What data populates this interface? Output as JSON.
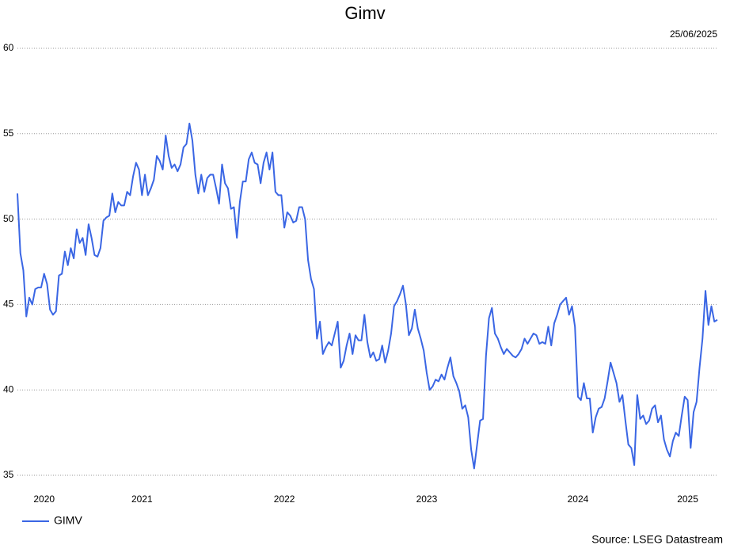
{
  "chart_data": {
    "type": "line",
    "title": "Gimv",
    "date": "25/06/2025",
    "source": "Source: LSEG Datastream",
    "categories": [
      null,
      null,
      null,
      null,
      null,
      null,
      null,
      null,
      null,
      "2020",
      null,
      null,
      null,
      null,
      null,
      null,
      null,
      null,
      null,
      null,
      null,
      null,
      null,
      null,
      null,
      null,
      null,
      null,
      null,
      null,
      null,
      null,
      null,
      null,
      null,
      null,
      null,
      null,
      null,
      null,
      null,
      null,
      "2021",
      null,
      null,
      null,
      null,
      null,
      null,
      null,
      null,
      null,
      null,
      null,
      null,
      null,
      null,
      null,
      null,
      null,
      null,
      null,
      null,
      null,
      null,
      null,
      null,
      null,
      null,
      null,
      null,
      null,
      null,
      null,
      null,
      null,
      null,
      null,
      null,
      null,
      null,
      null,
      null,
      null,
      null,
      null,
      null,
      null,
      null,
      null,
      "2022",
      null,
      null,
      null,
      null,
      null,
      null,
      null,
      null,
      null,
      null,
      null,
      null,
      null,
      null,
      null,
      null,
      null,
      null,
      null,
      null,
      null,
      null,
      null,
      null,
      null,
      null,
      null,
      null,
      null,
      null,
      null,
      null,
      null,
      null,
      null,
      null,
      null,
      null,
      null,
      null,
      null,
      null,
      null,
      null,
      null,
      null,
      null,
      "2023",
      null,
      null,
      null,
      null,
      null,
      null,
      null,
      null,
      null,
      null,
      null,
      null,
      null,
      null,
      null,
      null,
      null,
      null,
      null,
      null,
      null,
      null,
      null,
      null,
      null,
      null,
      null,
      null,
      null,
      null,
      null,
      null,
      null,
      null,
      null,
      null,
      null,
      null,
      null,
      null,
      null,
      null,
      null,
      null,
      null,
      null,
      null,
      null,
      null,
      null,
      "2024",
      null,
      null,
      null,
      null,
      null,
      null,
      null,
      null,
      null,
      null,
      null,
      null,
      null,
      null,
      null,
      null,
      null,
      null,
      null,
      null,
      null,
      null,
      null,
      null,
      null,
      null,
      null,
      null,
      null,
      null,
      null,
      null,
      null,
      null,
      null,
      null,
      "2025",
      null,
      null,
      null,
      null,
      null,
      null,
      null,
      null,
      null,
      null
    ],
    "series": [
      {
        "name": "GIMV",
        "color": "#3a66e4",
        "values": [
          51.5,
          48,
          47,
          44.3,
          45.4,
          45,
          45.9,
          46,
          46,
          46.8,
          46.2,
          44.7,
          44.4,
          44.6,
          46.7,
          46.8,
          48.1,
          47.3,
          48.3,
          47.7,
          49.4,
          48.6,
          48.9,
          47.9,
          49.7,
          48.9,
          47.9,
          47.8,
          48.3,
          49.9,
          50.1,
          50.2,
          51.5,
          50.4,
          51,
          50.8,
          50.8,
          51.6,
          51.4,
          52.5,
          53.3,
          52.9,
          51.4,
          52.6,
          51.4,
          51.8,
          52.3,
          53.7,
          53.4,
          52.9,
          54.9,
          53.7,
          53,
          53.2,
          52.8,
          53.2,
          54.2,
          54.4,
          55.6,
          54.6,
          52.6,
          51.5,
          52.6,
          51.6,
          52.4,
          52.6,
          52.6,
          51.8,
          50.9,
          53.2,
          52.1,
          51.8,
          50.6,
          50.7,
          48.9,
          51,
          52.2,
          52.2,
          53.5,
          53.9,
          53.3,
          53.2,
          52.1,
          53.3,
          53.9,
          52.9,
          53.9,
          51.6,
          51.4,
          51.4,
          49.5,
          50.4,
          50.2,
          49.8,
          49.9,
          50.7,
          50.7,
          50,
          47.6,
          46.5,
          45.9,
          43,
          44,
          42.1,
          42.5,
          42.8,
          42.6,
          43.3,
          44,
          41.3,
          41.7,
          42.6,
          43.3,
          42.1,
          43.2,
          42.9,
          42.9,
          44.4,
          42.8,
          41.9,
          42.2,
          41.7,
          41.8,
          42.6,
          41.6,
          42.3,
          43.3,
          44.9,
          45.2,
          45.6,
          46.1,
          45,
          43.2,
          43.6,
          44.7,
          43.6,
          43,
          42.3,
          41,
          40,
          40.2,
          40.6,
          40.5,
          40.9,
          40.6,
          41.3,
          41.9,
          40.8,
          40.4,
          39.9,
          38.9,
          39.1,
          38.4,
          36.5,
          35.4,
          36.8,
          38.2,
          38.3,
          42,
          44.2,
          44.8,
          43.3,
          43,
          42.5,
          42.1,
          42.4,
          42.2,
          42,
          41.9,
          42.1,
          42.4,
          43,
          42.7,
          43,
          43.3,
          43.2,
          42.7,
          42.8,
          42.7,
          43.7,
          42.6,
          43.9,
          44.4,
          45,
          45.2,
          45.4,
          44.4,
          44.9,
          43.7,
          39.6,
          39.4,
          40.4,
          39.5,
          39.5,
          37.5,
          38.4,
          38.9,
          39,
          39.5,
          40.5,
          41.6,
          41,
          40.4,
          39.3,
          39.7,
          38.2,
          36.8,
          36.6,
          35.6,
          39.7,
          38.3,
          38.5,
          38,
          38.2,
          38.9,
          39.1,
          38.1,
          38.5,
          37.1,
          36.5,
          36.1,
          37,
          37.5,
          37.3,
          38.5,
          39.6,
          39.4,
          36.6,
          38.7,
          39.3,
          41.3,
          43,
          45.8,
          43.8,
          44.9,
          44,
          44.1
        ]
      }
    ],
    "ylim": [
      35,
      60
    ],
    "yticks": [
      35,
      40,
      45,
      50,
      55,
      60
    ],
    "grid": true
  }
}
